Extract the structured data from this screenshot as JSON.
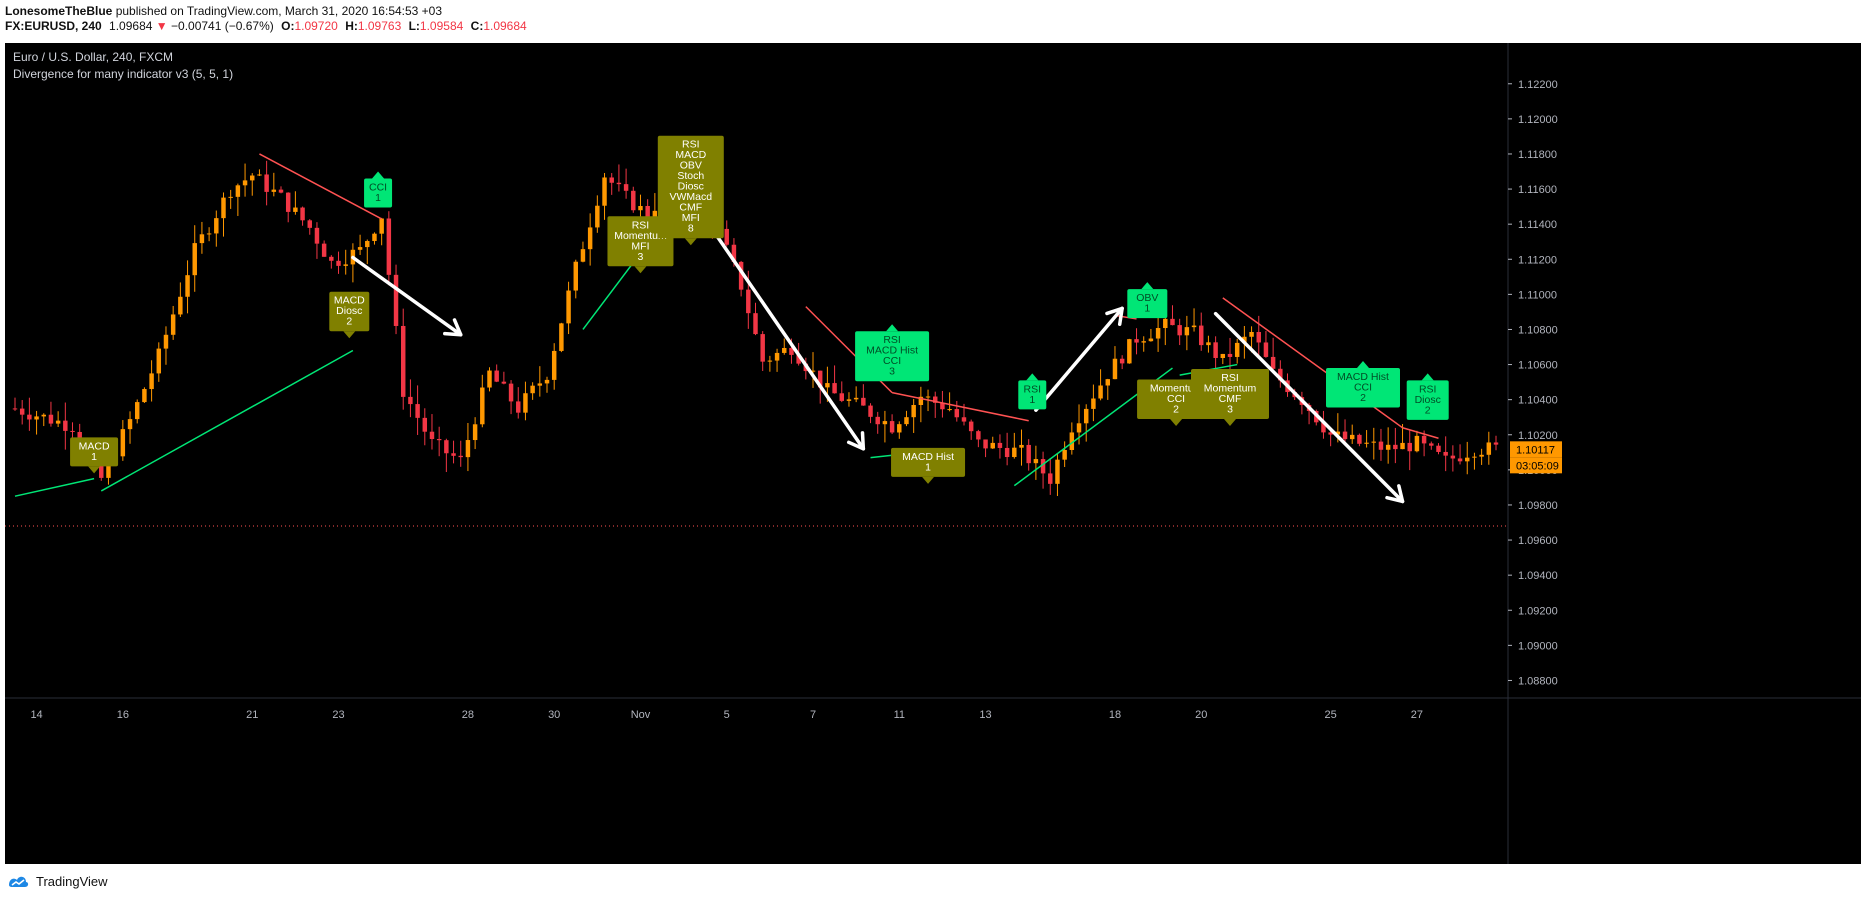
{
  "header": {
    "author": "LonesomeTheBlue",
    "published": " published on TradingView.com, March 31, 2020 16:54:53 +03",
    "symbol": "FX:EURUSD, 240",
    "last": "1.09684",
    "change": "−0.00741 (−0.67%)",
    "open_label": "O:",
    "open": "1.09720",
    "high_label": "H:",
    "high": "1.09763",
    "low_label": "L:",
    "low": "1.09584",
    "close_label": "C:",
    "close": "1.09684"
  },
  "footer": {
    "brand": "TradingView"
  },
  "colors": {
    "background": "#000000",
    "bull": "#ff9800",
    "bear": "#f23645",
    "bull_divergence": "#00e676",
    "bear_divergence": "#ff5252",
    "label_olive": "#808000",
    "label_green": "#00e676",
    "arrow": "#ffffff",
    "axis": "#b2b5be",
    "dotted": "#ff5252",
    "price_tag": "#ff9800"
  },
  "chart_data": {
    "type": "candlestick",
    "title": "Euro / U.S. Dollar, 240, FXCM",
    "subtitle": "Divergence for many indicator v3 (5, 5, 1)",
    "ylim": [
      1.087,
      1.1225
    ],
    "yticks": [
      1.088,
      1.09,
      1.092,
      1.094,
      1.096,
      1.098,
      1.1,
      1.102,
      1.104,
      1.106,
      1.108,
      1.11,
      1.112,
      1.114,
      1.116,
      1.118,
      1.12,
      1.122
    ],
    "xticks": [
      "14",
      "16",
      "21",
      "23",
      "28",
      "30",
      "Nov",
      "5",
      "7",
      "11",
      "13",
      "18",
      "20",
      "25",
      "27"
    ],
    "x_range": [
      0,
      206
    ],
    "xtick_bars": [
      3,
      15,
      33,
      45,
      63,
      75,
      87,
      99,
      111,
      123,
      135,
      153,
      165,
      183,
      195
    ],
    "close_price_tag": "1.10117",
    "countdown_tag": "03:05:09",
    "dotted_line_price": 1.0968,
    "anchors": [
      [
        0,
        1.1035
      ],
      [
        8,
        1.1025
      ],
      [
        12,
        1.0995
      ],
      [
        16,
        1.1028
      ],
      [
        20,
        1.1065
      ],
      [
        25,
        1.1125
      ],
      [
        30,
        1.116
      ],
      [
        33,
        1.1168
      ],
      [
        37,
        1.1155
      ],
      [
        41,
        1.1138
      ],
      [
        44,
        1.1118
      ],
      [
        48,
        1.1125
      ],
      [
        51,
        1.1145
      ],
      [
        54,
        1.1045
      ],
      [
        58,
        1.1015
      ],
      [
        62,
        1.1005
      ],
      [
        66,
        1.1055
      ],
      [
        70,
        1.1035
      ],
      [
        74,
        1.1055
      ],
      [
        78,
        1.1115
      ],
      [
        82,
        1.1168
      ],
      [
        85,
        1.1155
      ],
      [
        88,
        1.1145
      ],
      [
        91,
        1.1162
      ],
      [
        95,
        1.1165
      ],
      [
        98,
        1.1135
      ],
      [
        101,
        1.1105
      ],
      [
        104,
        1.1062
      ],
      [
        108,
        1.107
      ],
      [
        113,
        1.1045
      ],
      [
        118,
        1.1035
      ],
      [
        122,
        1.1025
      ],
      [
        126,
        1.1042
      ],
      [
        130,
        1.1035
      ],
      [
        134,
        1.1015
      ],
      [
        140,
        1.101
      ],
      [
        144,
        1.0995
      ],
      [
        147,
        1.1025
      ],
      [
        152,
        1.1055
      ],
      [
        156,
        1.1075
      ],
      [
        160,
        1.1082
      ],
      [
        164,
        1.1078
      ],
      [
        168,
        1.1062
      ],
      [
        172,
        1.1078
      ],
      [
        175,
        1.1055
      ],
      [
        179,
        1.104
      ],
      [
        183,
        1.102
      ],
      [
        187,
        1.1015
      ],
      [
        191,
        1.1012
      ],
      [
        195,
        1.1015
      ],
      [
        199,
        1.1005
      ],
      [
        203,
        1.1012
      ],
      [
        206,
        1.1012
      ]
    ],
    "divergence_lines": [
      {
        "kind": "bull",
        "points": [
          [
            0,
            1.0985
          ],
          [
            11,
            1.0995
          ]
        ]
      },
      {
        "kind": "bull",
        "points": [
          [
            12,
            1.0988
          ],
          [
            47,
            1.1068
          ]
        ]
      },
      {
        "kind": "bear",
        "points": [
          [
            34,
            1.118
          ],
          [
            51,
            1.1143
          ]
        ]
      },
      {
        "kind": "bull",
        "points": [
          [
            79,
            1.108
          ],
          [
            88,
            1.1129
          ]
        ]
      },
      {
        "kind": "bull",
        "points": [
          [
            88,
            1.1129
          ],
          [
            96,
            1.1142
          ]
        ]
      },
      {
        "kind": "bear",
        "points": [
          [
            110,
            1.1093
          ],
          [
            122,
            1.1044
          ]
        ]
      },
      {
        "kind": "bear",
        "points": [
          [
            122,
            1.1044
          ],
          [
            141,
            1.1028
          ]
        ]
      },
      {
        "kind": "bull",
        "points": [
          [
            119,
            1.1007
          ],
          [
            128,
            1.1011
          ]
        ]
      },
      {
        "kind": "bull",
        "points": [
          [
            139,
            1.0991
          ],
          [
            161,
            1.1058
          ]
        ]
      },
      {
        "kind": "bear",
        "points": [
          [
            153,
            1.1088
          ],
          [
            156,
            1.1086
          ]
        ]
      },
      {
        "kind": "bull",
        "points": [
          [
            162,
            1.1054
          ],
          [
            170,
            1.106
          ]
        ]
      },
      {
        "kind": "bear",
        "points": [
          [
            168,
            1.1098
          ],
          [
            193,
            1.1024
          ]
        ]
      },
      {
        "kind": "bear",
        "points": [
          [
            193,
            1.1024
          ],
          [
            198,
            1.1018
          ]
        ]
      }
    ],
    "arrows": [
      {
        "from": [
          47,
          1.1121
        ],
        "to": [
          62,
          1.1077
        ]
      },
      {
        "from": [
          96,
          1.1143
        ],
        "to": [
          118,
          1.1012
        ]
      },
      {
        "from": [
          142,
          1.1034
        ],
        "to": [
          154,
          1.1092
        ]
      },
      {
        "from": [
          167,
          1.1089
        ],
        "to": [
          193,
          1.0982
        ]
      }
    ],
    "labels": [
      {
        "text": [
          "MACD",
          "1"
        ],
        "x": 11,
        "y": 1.0998,
        "color": "olive",
        "pointer": "down",
        "w": 48
      },
      {
        "text": [
          "MACD",
          "Diosc",
          "2"
        ],
        "x": 46.5,
        "y": 1.1075,
        "color": "olive",
        "pointer": "down",
        "w": 40
      },
      {
        "text": [
          "CCI",
          "1"
        ],
        "x": 50.5,
        "y": 1.117,
        "color": "green",
        "pointer": "up",
        "w": 28
      },
      {
        "text": [
          "RSI",
          "Momentum",
          "MFI",
          "3"
        ],
        "x": 87,
        "y": 1.1112,
        "color": "olive",
        "pointer": "down",
        "w": 66
      },
      {
        "text": [
          "RSI",
          "MACD",
          "OBV",
          "Stoch",
          "Diosc",
          "VWMacd",
          "CMF",
          "MFI",
          "8"
        ],
        "x": 94,
        "y": 1.1128,
        "color": "olive",
        "pointer": "down",
        "w": 66
      },
      {
        "text": [
          "RSI",
          "MACD Hist",
          "CCI",
          "3"
        ],
        "x": 122,
        "y": 1.1083,
        "color": "green",
        "pointer": "up",
        "w": 74
      },
      {
        "text": [
          "MACD Hist",
          "1"
        ],
        "x": 127,
        "y": 1.0992,
        "color": "olive",
        "pointer": "down",
        "w": 74
      },
      {
        "text": [
          "RSI",
          "1"
        ],
        "x": 141.5,
        "y": 1.1055,
        "color": "green",
        "pointer": "up",
        "w": 28
      },
      {
        "text": [
          "OBV",
          "1"
        ],
        "x": 157.5,
        "y": 1.1107,
        "color": "green",
        "pointer": "up",
        "w": 40
      },
      {
        "text": [
          "Momentum",
          "CCI",
          "2"
        ],
        "x": 161.5,
        "y": 1.1025,
        "color": "olive",
        "pointer": "down",
        "w": 78
      },
      {
        "text": [
          "RSI",
          "Momentum",
          "CMF",
          "3"
        ],
        "x": 169,
        "y": 1.1025,
        "color": "olive",
        "pointer": "down",
        "w": 78
      },
      {
        "text": [
          "MACD Hist",
          "CCI",
          "2"
        ],
        "x": 187.5,
        "y": 1.1062,
        "color": "green",
        "pointer": "up",
        "w": 74
      },
      {
        "text": [
          "RSI",
          "Diosc",
          "2"
        ],
        "x": 196.5,
        "y": 1.1055,
        "color": "green",
        "pointer": "up",
        "w": 42
      }
    ]
  }
}
